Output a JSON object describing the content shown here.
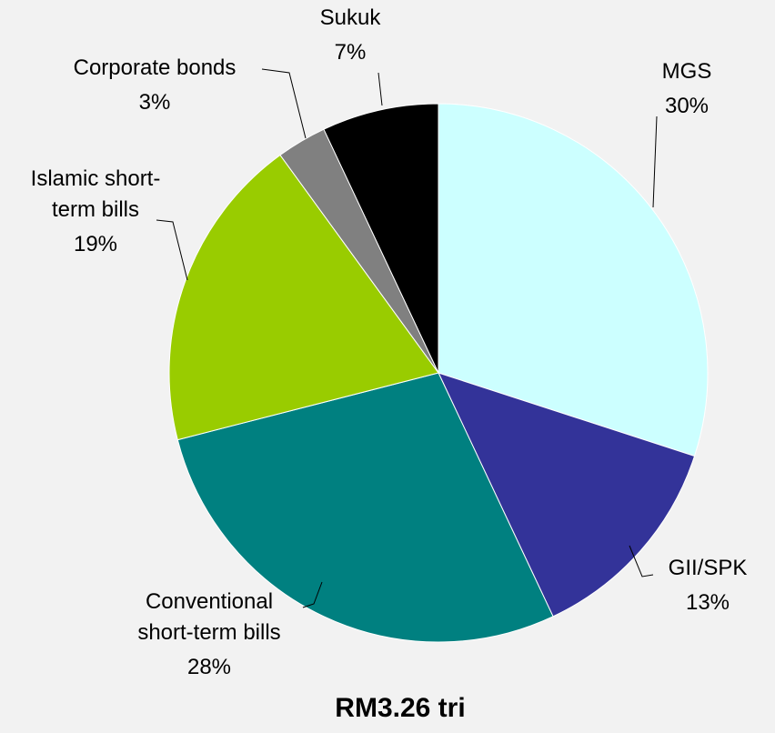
{
  "chart_data": {
    "type": "pie",
    "caption": "RM3.26 tri",
    "categories": [
      "MGS",
      "GII/SPK",
      "Conventional\nshort-term bills",
      "Islamic short-\nterm bills",
      "Corporate bonds",
      "Sukuk"
    ],
    "values": [
      30,
      13,
      28,
      19,
      3,
      7
    ],
    "value_labels": [
      "30%",
      "13%",
      "28%",
      "19%",
      "3%",
      "7%"
    ],
    "colors": [
      "#ccffff",
      "#333399",
      "#008080",
      "#99cc00",
      "#808080",
      "#000000"
    ]
  }
}
